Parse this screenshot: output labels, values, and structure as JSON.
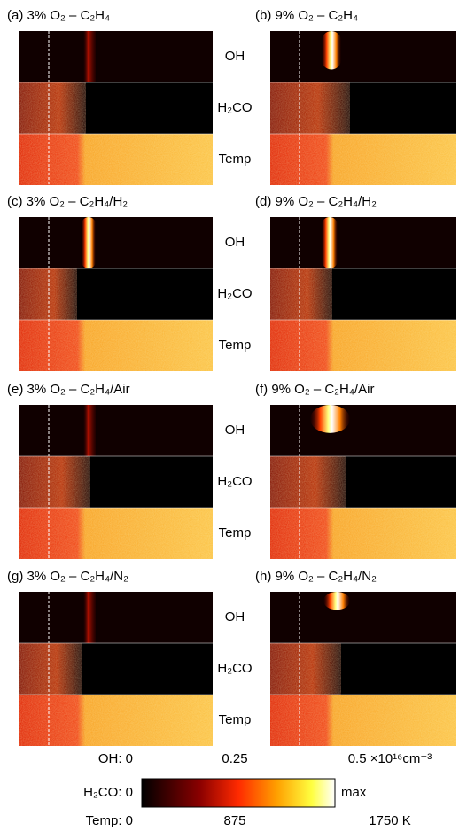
{
  "groups": [
    {
      "left": "(a) 3% O₂ – C₂H₄",
      "right": "(b) 9% O₂ – C₂H₄",
      "rows": [
        "OH",
        "H₂CO",
        "Temp"
      ]
    },
    {
      "left": "(c) 3% O₂ – C₂H₄/H₂",
      "right": "(d) 9% O₂ – C₂H₄/H₂",
      "rows": [
        "OH",
        "H₂CO",
        "Temp"
      ]
    },
    {
      "left": "(e) 3% O₂ – C₂H₄/Air",
      "right": "(f) 9% O₂ – C₂H₄/Air",
      "rows": [
        "OH",
        "H₂CO",
        "Temp"
      ]
    },
    {
      "left": "(g) 3% O₂ – C₂H₄/N₂",
      "right": "(h) 9% O₂ – C₂H₄/N₂",
      "rows": [
        "OH",
        "H₂CO",
        "Temp"
      ]
    }
  ],
  "colorbar": {
    "oh": [
      "OH: 0",
      "0.25",
      "0.5 ×10¹⁶cm⁻³"
    ],
    "h2co": [
      "H₂CO: 0",
      "max"
    ],
    "temp": [
      "Temp: 0",
      "875",
      "1750 K"
    ]
  }
}
